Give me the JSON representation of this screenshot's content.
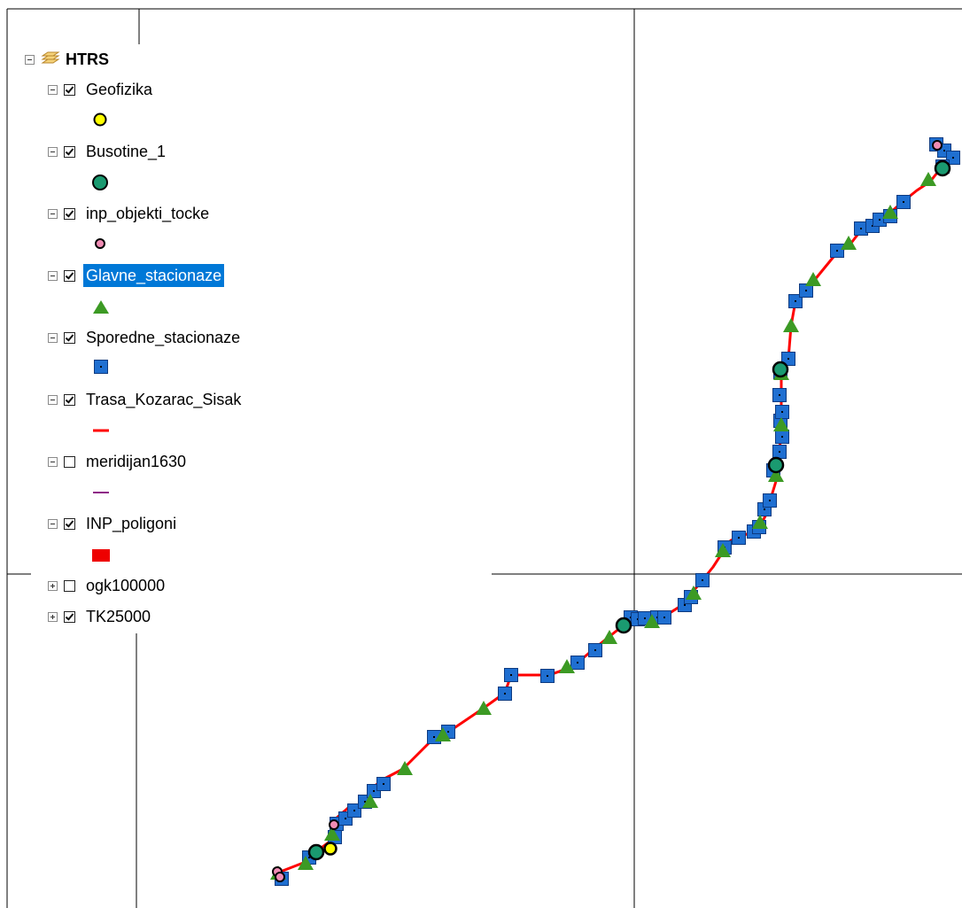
{
  "colors": {
    "route_line": "#ff0000",
    "main_station_fill": "#3c9a24",
    "secondary_station_fill": "#1f6fd1",
    "well_fill": "#1a9a70",
    "geophysics_fill": "#ffff00",
    "object_point_fill": "#f08cb4",
    "meridian_line": "#8e1f86",
    "polygon_fill": "#ee0000",
    "selection_highlight": "#0078d7"
  },
  "toc": {
    "root": {
      "label": "HTRS",
      "icon": "layers-stack-icon",
      "expanded": true
    },
    "layers": [
      {
        "label": "Geofizika",
        "checked": true,
        "expanded": true,
        "symbol": "yellow-circle",
        "selected": false
      },
      {
        "label": "Busotine_1",
        "checked": true,
        "expanded": true,
        "symbol": "green-circle",
        "selected": false
      },
      {
        "label": "inp_objekti_tocke",
        "checked": true,
        "expanded": true,
        "symbol": "pink-circle",
        "selected": false
      },
      {
        "label": "Glavne_stacionaze",
        "checked": true,
        "expanded": true,
        "symbol": "green-triangle",
        "selected": true
      },
      {
        "label": "Sporedne_stacionaze",
        "checked": true,
        "expanded": true,
        "symbol": "blue-square",
        "selected": false
      },
      {
        "label": "Trasa_Kozarac_Sisak",
        "checked": true,
        "expanded": true,
        "symbol": "red-line",
        "selected": false
      },
      {
        "label": "meridijan1630",
        "checked": false,
        "expanded": true,
        "symbol": "purple-line",
        "selected": false
      },
      {
        "label": "INP_poligoni",
        "checked": true,
        "expanded": true,
        "symbol": "red-rectangle",
        "selected": false
      },
      {
        "label": "ogk100000",
        "checked": false,
        "expanded": false,
        "symbol": "",
        "selected": false
      },
      {
        "label": "TK25000",
        "checked": true,
        "expanded": false,
        "symbol": "",
        "selected": false
      }
    ]
  }
}
